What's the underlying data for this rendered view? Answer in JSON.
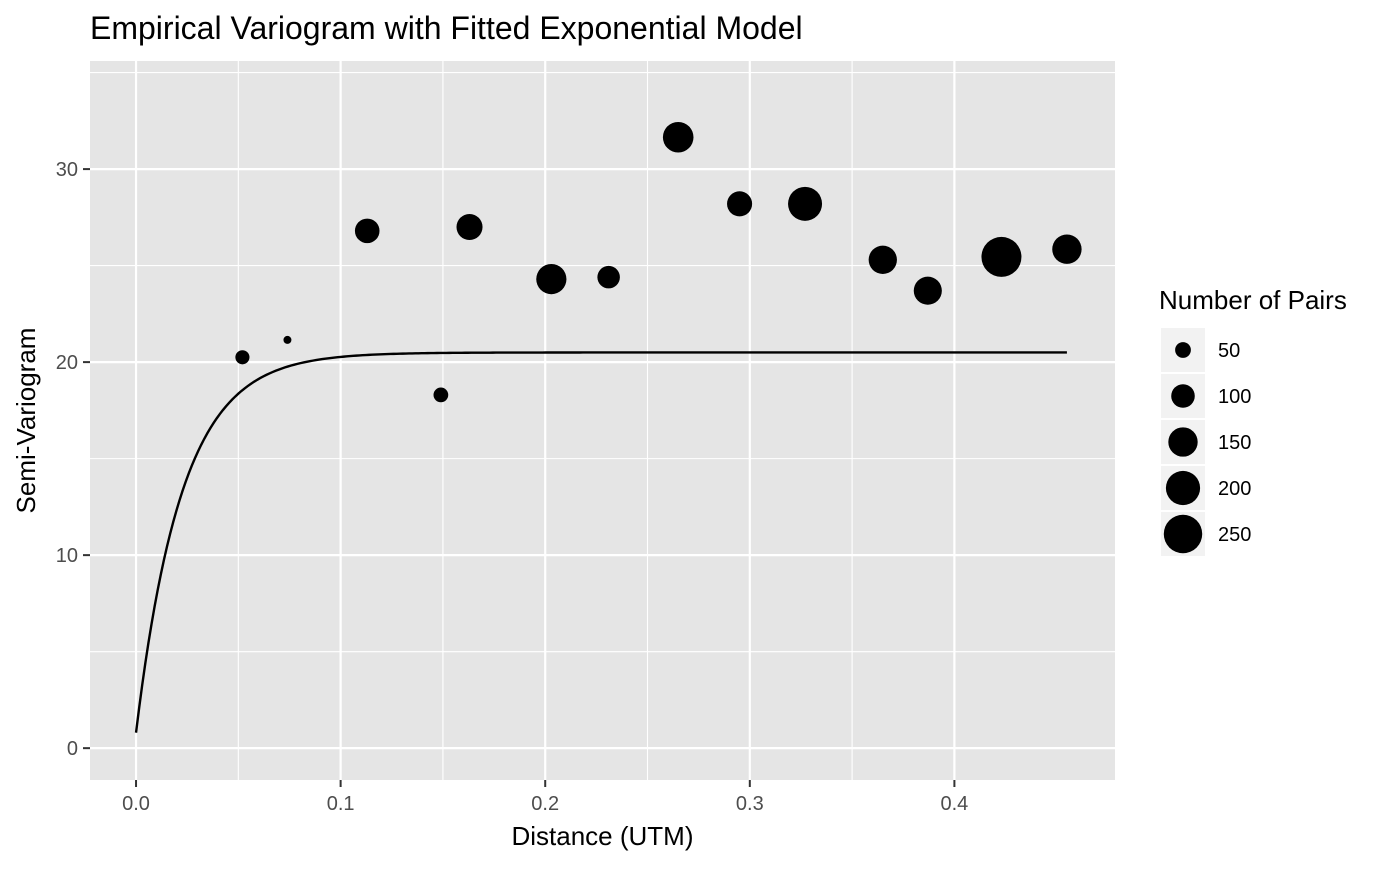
{
  "chart_data": {
    "type": "scatter",
    "title": "Empirical Variogram with Fitted Exponential Model",
    "xlabel": "Distance (UTM)",
    "ylabel": "Semi-Variogram",
    "xlim": [
      -0.0225,
      0.4785
    ],
    "ylim": [
      -1.65,
      35.6
    ],
    "x_ticks": [
      0.0,
      0.1,
      0.2,
      0.3,
      0.4
    ],
    "x_tick_labels": [
      "0.0",
      "0.1",
      "0.2",
      "0.3",
      "0.4"
    ],
    "y_ticks": [
      0,
      10,
      20,
      30
    ],
    "y_tick_labels": [
      "0",
      "10",
      "20",
      "30"
    ],
    "grid": true,
    "legend": {
      "title": "Number of Pairs",
      "position": "right",
      "breaks": [
        50,
        100,
        150,
        200,
        250
      ],
      "labels": [
        "50",
        "100",
        "150",
        "200",
        "250"
      ]
    },
    "size_scale": {
      "domain": [
        20,
        270
      ],
      "range": [
        4,
        20
      ]
    },
    "series": [
      {
        "kind": "points",
        "x": [
          0.052,
          0.074,
          0.113,
          0.149,
          0.163,
          0.203,
          0.231,
          0.265,
          0.295,
          0.327,
          0.365,
          0.387,
          0.423,
          0.455
        ],
        "y": [
          20.25,
          21.15,
          26.8,
          18.3,
          27.0,
          24.3,
          24.4,
          31.65,
          28.2,
          28.2,
          25.3,
          23.7,
          25.45,
          25.85
        ],
        "n_pairs": [
          42,
          20,
          108,
          45,
          120,
          158,
          92,
          162,
          112,
          198,
          140,
          138,
          270,
          150
        ]
      },
      {
        "kind": "line",
        "model": "exponential",
        "nugget": 0.8,
        "sill": 20.5,
        "range": 0.0225,
        "x_range": [
          0.0,
          0.455
        ]
      }
    ]
  }
}
